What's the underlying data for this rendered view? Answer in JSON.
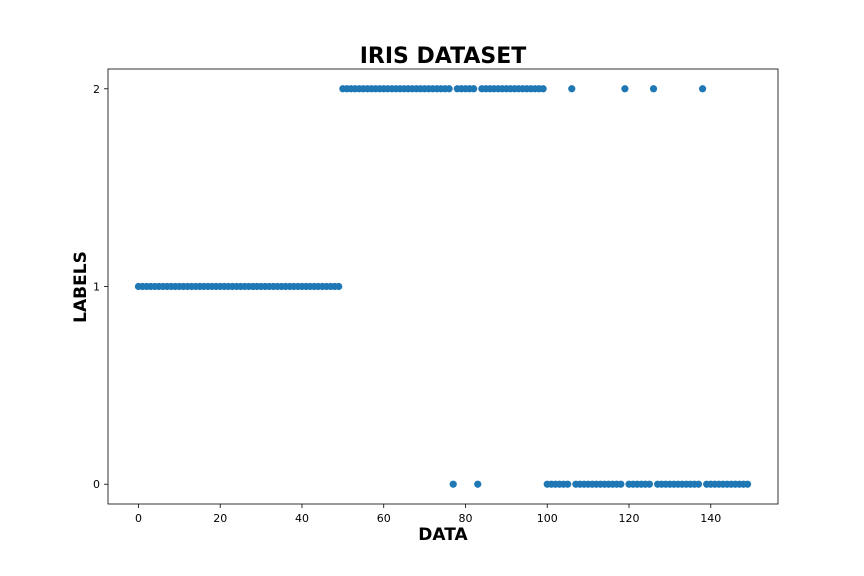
{
  "chart_data": {
    "type": "scatter",
    "title": "IRIS DATASET",
    "xlabel": "DATA",
    "ylabel": "LABELS",
    "xlim": [
      -7.45,
      156.45
    ],
    "ylim": [
      -0.1,
      2.1
    ],
    "xticks": [
      0,
      20,
      40,
      60,
      80,
      100,
      120,
      140
    ],
    "yticks": [
      0,
      1,
      2
    ],
    "grid": false,
    "marker_color": "#1f77b4",
    "series": [
      {
        "x": [
          0,
          1,
          2,
          3,
          4,
          5,
          6,
          7,
          8,
          9,
          10,
          11,
          12,
          13,
          14,
          15,
          16,
          17,
          18,
          19,
          20,
          21,
          22,
          23,
          24,
          25,
          26,
          27,
          28,
          29,
          30,
          31,
          32,
          33,
          34,
          35,
          36,
          37,
          38,
          39,
          40,
          41,
          42,
          43,
          44,
          45,
          46,
          47,
          48,
          49,
          50,
          51,
          52,
          53,
          54,
          55,
          56,
          57,
          58,
          59,
          60,
          61,
          62,
          63,
          64,
          65,
          66,
          67,
          68,
          69,
          70,
          71,
          72,
          73,
          74,
          75,
          76,
          77,
          78,
          79,
          80,
          81,
          82,
          83,
          84,
          85,
          86,
          87,
          88,
          89,
          90,
          91,
          92,
          93,
          94,
          95,
          96,
          97,
          98,
          99,
          100,
          101,
          102,
          103,
          104,
          105,
          106,
          107,
          108,
          109,
          110,
          111,
          112,
          113,
          114,
          115,
          116,
          117,
          118,
          119,
          120,
          121,
          122,
          123,
          124,
          125,
          126,
          127,
          128,
          129,
          130,
          131,
          132,
          133,
          134,
          135,
          136,
          137,
          138,
          139,
          140,
          141,
          142,
          143,
          144,
          145,
          146,
          147,
          148,
          149
        ],
        "y": [
          1,
          1,
          1,
          1,
          1,
          1,
          1,
          1,
          1,
          1,
          1,
          1,
          1,
          1,
          1,
          1,
          1,
          1,
          1,
          1,
          1,
          1,
          1,
          1,
          1,
          1,
          1,
          1,
          1,
          1,
          1,
          1,
          1,
          1,
          1,
          1,
          1,
          1,
          1,
          1,
          1,
          1,
          1,
          1,
          1,
          1,
          1,
          1,
          1,
          1,
          2,
          2,
          2,
          2,
          2,
          2,
          2,
          2,
          2,
          2,
          2,
          2,
          2,
          2,
          2,
          2,
          2,
          2,
          2,
          2,
          2,
          2,
          2,
          2,
          2,
          2,
          2,
          0,
          2,
          2,
          2,
          2,
          2,
          0,
          2,
          2,
          2,
          2,
          2,
          2,
          2,
          2,
          2,
          2,
          2,
          2,
          2,
          2,
          2,
          2,
          0,
          0,
          0,
          0,
          0,
          0,
          2,
          0,
          0,
          0,
          0,
          0,
          0,
          0,
          0,
          0,
          0,
          0,
          0,
          2,
          0,
          0,
          0,
          0,
          0,
          0,
          2,
          0,
          0,
          0,
          0,
          0,
          0,
          0,
          0,
          0,
          0,
          0,
          2,
          0,
          0,
          0,
          0,
          0,
          0,
          0,
          0,
          0,
          0,
          0
        ]
      }
    ]
  }
}
